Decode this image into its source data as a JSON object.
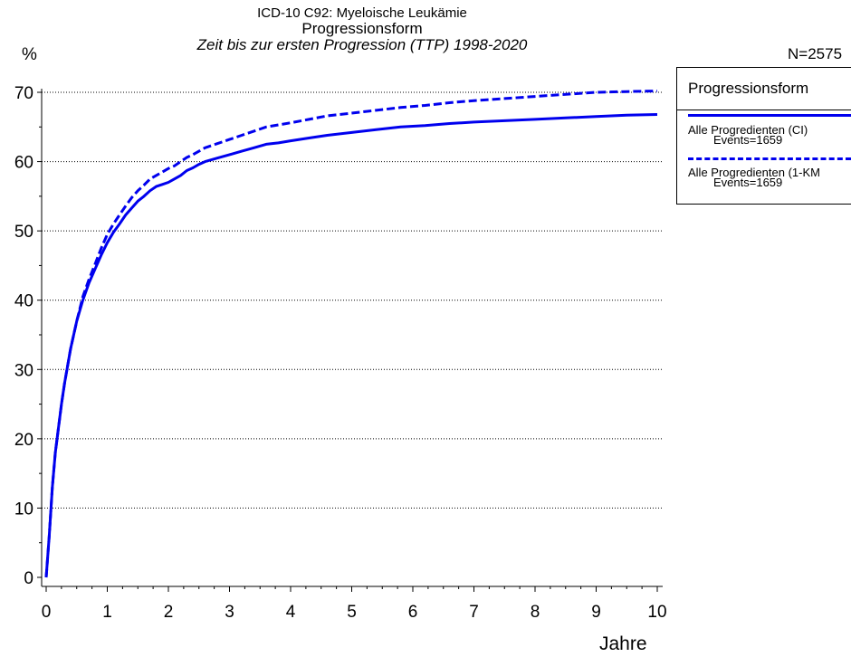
{
  "chart_data": {
    "type": "line",
    "title": "ICD-10 C92: Myeloische Leukämie",
    "subtitle": "Progressionsform",
    "subtitle2": "Zeit bis zur ersten Progression (TTP) 1998-2020",
    "ylabel": "%",
    "xlabel": "Jahre",
    "n_label": "N=2575",
    "xlim": [
      0,
      10
    ],
    "ylim": [
      0,
      70
    ],
    "x_ticks": [
      0,
      1,
      2,
      3,
      4,
      5,
      6,
      7,
      8,
      9,
      10
    ],
    "y_ticks": [
      0,
      10,
      20,
      30,
      40,
      50,
      60,
      70
    ],
    "grid": "horizontal dotted",
    "legend": {
      "title": "Progressionsform",
      "placement": "right",
      "entries": [
        {
          "label": "Alle Progredienten (CI)",
          "sub": "Events=1659",
          "style": "solid"
        },
        {
          "label": "Alle Progredienten (1-KM",
          "sub": "Events=1659",
          "style": "dashed"
        }
      ]
    },
    "series": [
      {
        "name": "Alle Progredienten (CI)",
        "style": "solid",
        "color": "#0000ee",
        "x": [
          0,
          0.05,
          0.1,
          0.15,
          0.2,
          0.25,
          0.3,
          0.4,
          0.5,
          0.6,
          0.7,
          0.8,
          0.9,
          1.0,
          1.1,
          1.2,
          1.3,
          1.4,
          1.5,
          1.6,
          1.7,
          1.8,
          1.9,
          2.0,
          2.1,
          2.2,
          2.3,
          2.4,
          2.5,
          2.6,
          2.8,
          3.0,
          3.2,
          3.4,
          3.6,
          3.8,
          4.0,
          4.3,
          4.6,
          5.0,
          5.4,
          5.8,
          6.2,
          6.6,
          7.0,
          7.5,
          8.0,
          8.5,
          9.0,
          9.5,
          10.0
        ],
        "y": [
          0,
          6,
          13,
          18,
          21.5,
          25,
          28,
          33,
          37,
          40,
          42.5,
          44.5,
          46.5,
          48.3,
          49.8,
          51,
          52.3,
          53.3,
          54.3,
          55,
          55.8,
          56.4,
          56.7,
          57,
          57.5,
          58,
          58.7,
          59.1,
          59.6,
          60,
          60.5,
          61,
          61.5,
          62,
          62.5,
          62.7,
          63,
          63.4,
          63.8,
          64.2,
          64.6,
          65,
          65.2,
          65.5,
          65.7,
          65.9,
          66.1,
          66.3,
          66.5,
          66.7,
          66.8
        ]
      },
      {
        "name": "Alle Progredienten (1-KM",
        "style": "dashed",
        "color": "#0000ee",
        "x": [
          0,
          0.05,
          0.1,
          0.15,
          0.2,
          0.25,
          0.3,
          0.4,
          0.5,
          0.6,
          0.7,
          0.8,
          0.9,
          1.0,
          1.1,
          1.2,
          1.3,
          1.4,
          1.5,
          1.6,
          1.7,
          1.8,
          1.9,
          2.0,
          2.1,
          2.2,
          2.3,
          2.4,
          2.5,
          2.6,
          2.8,
          3.0,
          3.2,
          3.4,
          3.6,
          3.8,
          4.0,
          4.3,
          4.6,
          5.0,
          5.4,
          5.8,
          6.2,
          6.6,
          7.0,
          7.5,
          8.0,
          8.5,
          9.0,
          9.5,
          10.0
        ],
        "y": [
          0,
          6,
          13,
          18,
          21.5,
          25,
          28,
          33,
          37,
          40.5,
          43,
          45.2,
          47.5,
          49.5,
          51,
          52.3,
          53.6,
          54.8,
          55.8,
          56.6,
          57.5,
          58,
          58.5,
          59,
          59.4,
          60,
          60.6,
          61,
          61.5,
          62,
          62.6,
          63.2,
          63.8,
          64.4,
          65,
          65.3,
          65.6,
          66.1,
          66.6,
          67,
          67.4,
          67.8,
          68.1,
          68.5,
          68.8,
          69.1,
          69.4,
          69.7,
          70,
          70.1,
          70.2
        ]
      }
    ]
  }
}
